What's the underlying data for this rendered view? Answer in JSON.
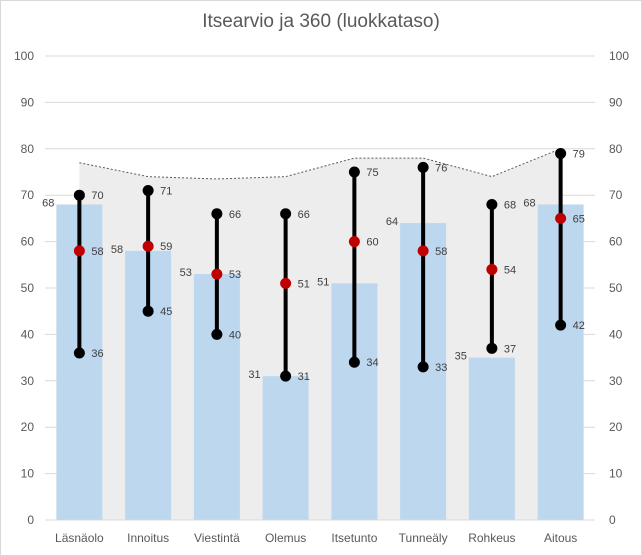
{
  "chart_data": {
    "type": "bar",
    "title": "Itsearvio ja 360 (luokkataso)",
    "categories": [
      "Läsnäolo",
      "Innoitus",
      "Viestintä",
      "Olemus",
      "Itsetunto",
      "Tunneäly",
      "Rohkeus",
      "Aitous"
    ],
    "ylim": [
      0,
      100
    ],
    "yticks": [
      0,
      10,
      20,
      30,
      40,
      50,
      60,
      70,
      80,
      90,
      100
    ],
    "secondary_ylim": [
      0,
      100
    ],
    "grid": true,
    "legend": "none",
    "series": [
      {
        "kind": "bar",
        "values": [
          68,
          58,
          53,
          31,
          51,
          64,
          35,
          68
        ]
      },
      {
        "kind": "range-high",
        "values": [
          70,
          71,
          66,
          66,
          75,
          76,
          68,
          79
        ]
      },
      {
        "kind": "range-low",
        "values": [
          36,
          45,
          40,
          31,
          34,
          33,
          37,
          42
        ]
      },
      {
        "kind": "midpoint",
        "values": [
          58,
          59,
          53,
          51,
          60,
          58,
          54,
          65
        ]
      },
      {
        "kind": "area",
        "values": [
          77,
          74,
          73.5,
          74,
          78,
          78,
          74,
          80
        ]
      }
    ],
    "colors": {
      "bar": "#bdd7ee",
      "area": "#ededed",
      "area_line": "#595959",
      "range": "#000000",
      "midpoint": "#c00000",
      "grid": "#d9d9d9",
      "tick_label": "#595959",
      "data_label": "#404040"
    }
  }
}
